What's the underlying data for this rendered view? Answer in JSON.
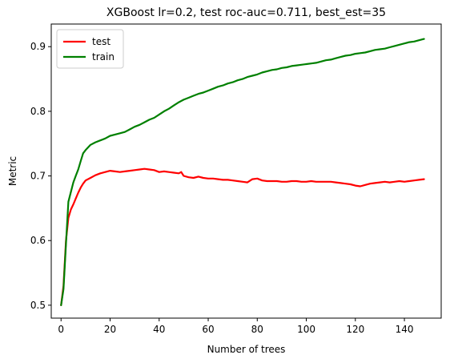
{
  "chart_data": {
    "type": "line",
    "title": "XGBoost lr=0.2, test roc-auc=0.711, best_est=35",
    "xlabel": "Number of trees",
    "ylabel": "Metric",
    "xlim": [
      -4,
      155
    ],
    "ylim": [
      0.48,
      0.935
    ],
    "xticks": [
      0,
      20,
      40,
      60,
      80,
      100,
      120,
      140
    ],
    "xtick_labels": [
      "0",
      "20",
      "40",
      "60",
      "80",
      "100",
      "120",
      "140"
    ],
    "yticks": [
      0.5,
      0.6,
      0.7,
      0.8,
      0.9
    ],
    "ytick_labels": [
      "0.5",
      "0.6",
      "0.7",
      "0.8",
      "0.9"
    ],
    "grid": false,
    "legend_position": "top-left",
    "series": [
      {
        "name": "test",
        "color": "#ff0000",
        "x": [
          0,
          1,
          2,
          3,
          4,
          5,
          6,
          7,
          8,
          9,
          10,
          12,
          14,
          16,
          18,
          20,
          22,
          24,
          26,
          28,
          30,
          32,
          34,
          36,
          38,
          40,
          42,
          44,
          46,
          48,
          49,
          50,
          52,
          54,
          56,
          58,
          60,
          62,
          64,
          66,
          68,
          70,
          72,
          74,
          76,
          78,
          80,
          82,
          84,
          86,
          88,
          90,
          92,
          94,
          96,
          98,
          100,
          102,
          104,
          106,
          108,
          110,
          112,
          114,
          116,
          118,
          120,
          122,
          124,
          126,
          128,
          130,
          132,
          134,
          136,
          138,
          140,
          142,
          144,
          146,
          148
        ],
        "y": [
          0.5,
          0.53,
          0.6,
          0.635,
          0.648,
          0.656,
          0.665,
          0.674,
          0.682,
          0.688,
          0.693,
          0.697,
          0.701,
          0.704,
          0.706,
          0.708,
          0.707,
          0.706,
          0.707,
          0.708,
          0.709,
          0.71,
          0.711,
          0.71,
          0.709,
          0.706,
          0.707,
          0.706,
          0.705,
          0.704,
          0.706,
          0.7,
          0.698,
          0.697,
          0.699,
          0.697,
          0.696,
          0.696,
          0.695,
          0.694,
          0.694,
          0.693,
          0.692,
          0.691,
          0.69,
          0.695,
          0.696,
          0.693,
          0.692,
          0.692,
          0.692,
          0.691,
          0.691,
          0.692,
          0.692,
          0.691,
          0.691,
          0.692,
          0.691,
          0.691,
          0.691,
          0.691,
          0.69,
          0.689,
          0.688,
          0.687,
          0.685,
          0.684,
          0.686,
          0.688,
          0.689,
          0.69,
          0.691,
          0.69,
          0.691,
          0.692,
          0.691,
          0.692,
          0.693,
          0.694,
          0.695
        ]
      },
      {
        "name": "train",
        "color": "#008000",
        "x": [
          0,
          1,
          2,
          3,
          4,
          5,
          6,
          7,
          8,
          9,
          10,
          12,
          14,
          16,
          18,
          20,
          22,
          24,
          26,
          28,
          30,
          32,
          34,
          36,
          38,
          40,
          42,
          44,
          46,
          48,
          50,
          52,
          54,
          56,
          58,
          60,
          62,
          64,
          66,
          68,
          70,
          72,
          74,
          76,
          78,
          80,
          82,
          84,
          86,
          88,
          90,
          92,
          94,
          96,
          98,
          100,
          102,
          104,
          106,
          108,
          110,
          112,
          114,
          116,
          118,
          120,
          122,
          124,
          126,
          128,
          130,
          132,
          134,
          136,
          138,
          140,
          142,
          144,
          146,
          148
        ],
        "y": [
          0.5,
          0.525,
          0.595,
          0.66,
          0.675,
          0.69,
          0.7,
          0.71,
          0.723,
          0.735,
          0.74,
          0.748,
          0.752,
          0.755,
          0.758,
          0.762,
          0.764,
          0.766,
          0.768,
          0.772,
          0.776,
          0.779,
          0.783,
          0.787,
          0.79,
          0.795,
          0.8,
          0.804,
          0.809,
          0.814,
          0.818,
          0.821,
          0.824,
          0.827,
          0.829,
          0.832,
          0.835,
          0.838,
          0.84,
          0.843,
          0.845,
          0.848,
          0.85,
          0.853,
          0.855,
          0.857,
          0.86,
          0.862,
          0.864,
          0.865,
          0.867,
          0.868,
          0.87,
          0.871,
          0.872,
          0.873,
          0.874,
          0.875,
          0.877,
          0.879,
          0.88,
          0.882,
          0.884,
          0.886,
          0.887,
          0.889,
          0.89,
          0.891,
          0.893,
          0.895,
          0.896,
          0.897,
          0.899,
          0.901,
          0.903,
          0.905,
          0.907,
          0.908,
          0.91,
          0.912
        ]
      }
    ]
  }
}
